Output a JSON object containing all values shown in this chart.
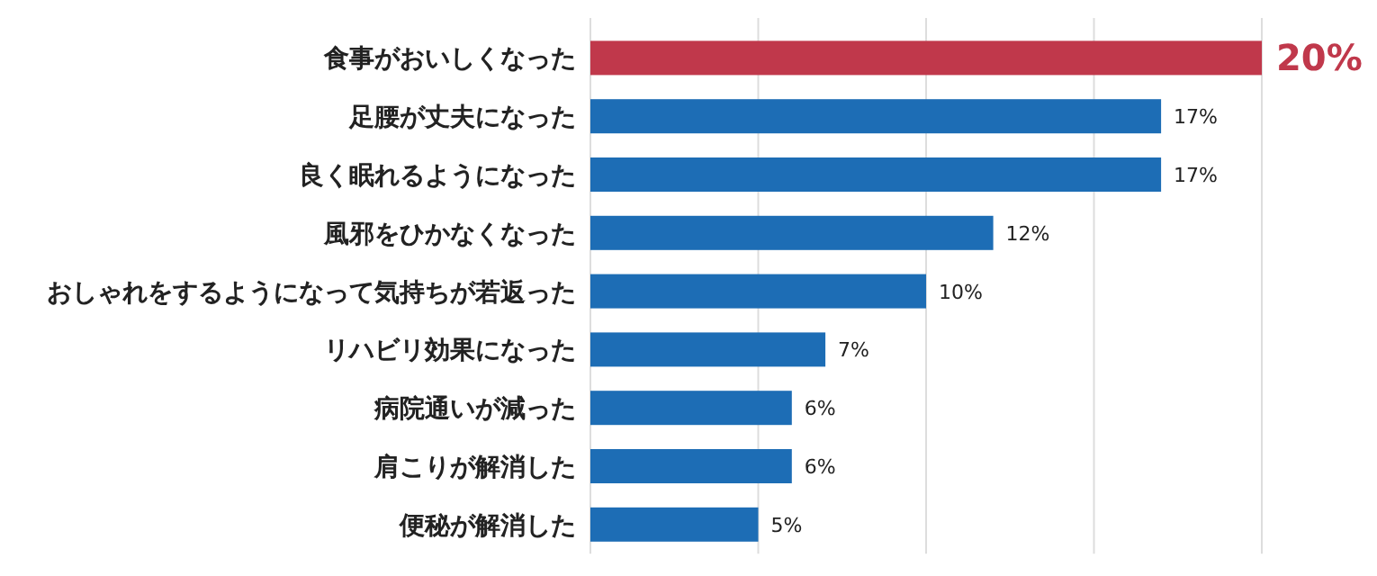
{
  "chart_data": {
    "type": "bar",
    "orientation": "horizontal",
    "categories": [
      "食事がおいしくなった",
      "足腰が丈夫になった",
      "良く眠れるようになった",
      "風邪をひかなくなった",
      "おしゃれをするようになって気持ちが若返った",
      "リハビリ効果になった",
      "病院通いが減った",
      "肩こりが解消した",
      "便秘が解消した"
    ],
    "values": [
      20,
      17,
      17,
      12,
      10,
      7,
      6,
      6,
      5
    ],
    "colors": [
      "#c0384b",
      "#1d6db5",
      "#1d6db5",
      "#1d6db5",
      "#1d6db5",
      "#1d6db5",
      "#1d6db5",
      "#1d6db5",
      "#1d6db5"
    ],
    "value_labels": [
      "20%",
      "17%",
      "17%",
      "12%",
      "10%",
      "7%",
      "6%",
      "6%",
      "5%"
    ],
    "xlim": [
      0,
      20
    ],
    "xticks": [
      {
        "value": 0,
        "label": null
      },
      {
        "value": 5,
        "label": null
      },
      {
        "value": 10,
        "label": null
      },
      {
        "value": 15,
        "label": null
      },
      {
        "value": 20,
        "label": null
      }
    ],
    "grid": "x",
    "tick_labels": "y"
  }
}
